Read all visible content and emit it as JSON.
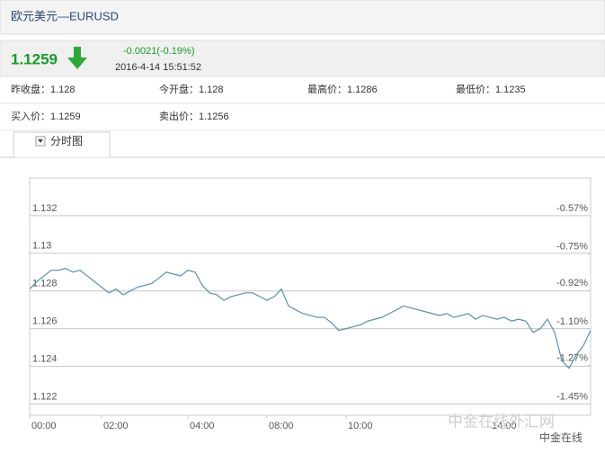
{
  "header": {
    "title": "欧元美元—EURUSD"
  },
  "quote": {
    "price": 1.1259,
    "change": "-0.0021(-0.19%)",
    "time": "2016-4-14 15:51:52"
  },
  "stats": [
    {
      "label": "昨收盘：",
      "value": 1.128
    },
    {
      "label": "今开盘：",
      "value": 1.128
    },
    {
      "label": "最高价：",
      "value": 1.1286
    },
    {
      "label": "最低价：",
      "value": 1.1235
    },
    {
      "label": "买入价：",
      "value": 1.1259
    },
    {
      "label": "卖出价：",
      "value": 1.1256
    }
  ],
  "tab": "分时图",
  "watermark": [
    "中金在线外汇网",
    "中金在线"
  ],
  "chart_data": {
    "type": "line",
    "xlim": [
      0,
      78
    ],
    "xticks": [
      {
        "value": 0,
        "label": "00:00"
      },
      {
        "value": 10,
        "label": "02:00"
      },
      {
        "value": 22,
        "label": "04:00"
      },
      {
        "value": 33,
        "label": "08:00"
      },
      {
        "value": 44,
        "label": "10:00"
      },
      {
        "value": 64,
        "label": "14:00"
      }
    ],
    "ylim": [
      1.1214,
      1.134
    ],
    "yticks": [
      1.122,
      1.124,
      1.126,
      1.128,
      1.13,
      1.132
    ],
    "y2lim": [
      -1.503,
      -0.394
    ],
    "y2ticks": [
      {
        "value": -1.45,
        "label": "-1.45%"
      },
      {
        "value": -1.27,
        "label": "-1.27%"
      },
      {
        "value": -1.1,
        "label": "-1.10%"
      },
      {
        "value": -0.92,
        "label": "-0.92%"
      },
      {
        "value": -0.75,
        "label": "-0.75%"
      },
      {
        "value": -0.57,
        "label": "-0.57%"
      }
    ],
    "baseline": 1.13,
    "grid": true,
    "series": [
      {
        "color": "#5b8fa6",
        "values": [
          1.1281,
          1.1285,
          1.1288,
          1.1291,
          1.1291,
          1.1292,
          1.129,
          1.1291,
          1.1288,
          1.1285,
          1.1282,
          1.1279,
          1.1281,
          1.1278,
          1.128,
          1.1282,
          1.1283,
          1.1284,
          1.1287,
          1.129,
          1.1289,
          1.1288,
          1.1291,
          1.129,
          1.1283,
          1.1279,
          1.1278,
          1.1275,
          1.1277,
          1.1278,
          1.1279,
          1.1279,
          1.1277,
          1.1275,
          1.1277,
          1.1281,
          1.1272,
          1.127,
          1.1268,
          1.1267,
          1.1266,
          1.1266,
          1.1263,
          1.1259,
          1.126,
          1.1261,
          1.1262,
          1.1264,
          1.1265,
          1.1266,
          1.1268,
          1.127,
          1.1272,
          1.1271,
          1.127,
          1.1269,
          1.1268,
          1.1267,
          1.1268,
          1.1266,
          1.1267,
          1.1268,
          1.1265,
          1.1267,
          1.1266,
          1.1265,
          1.1266,
          1.1264,
          1.1265,
          1.1264,
          1.1258,
          1.126,
          1.1265,
          1.1258,
          1.1243,
          1.1239,
          1.1246,
          1.1251,
          1.1259
        ]
      }
    ]
  }
}
